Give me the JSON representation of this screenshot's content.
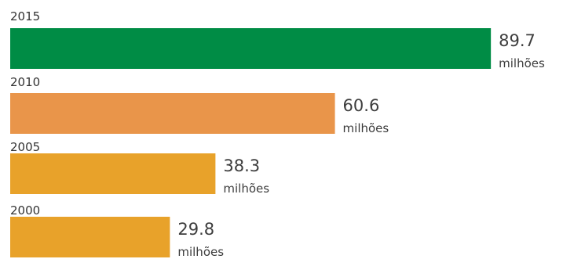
{
  "chart_data": {
    "type": "bar",
    "orientation": "horizontal",
    "categories": [
      "2015",
      "2010",
      "2005",
      "2000"
    ],
    "values": [
      89.7,
      60.6,
      38.3,
      29.8
    ],
    "value_labels": [
      "89.7",
      "60.6",
      "38.3",
      "29.8"
    ],
    "unit": "milhões",
    "colors": [
      "#008c45",
      "#e9954a",
      "#e8a22a",
      "#e8a22a"
    ],
    "xlim": [
      0,
      101.4
    ]
  }
}
